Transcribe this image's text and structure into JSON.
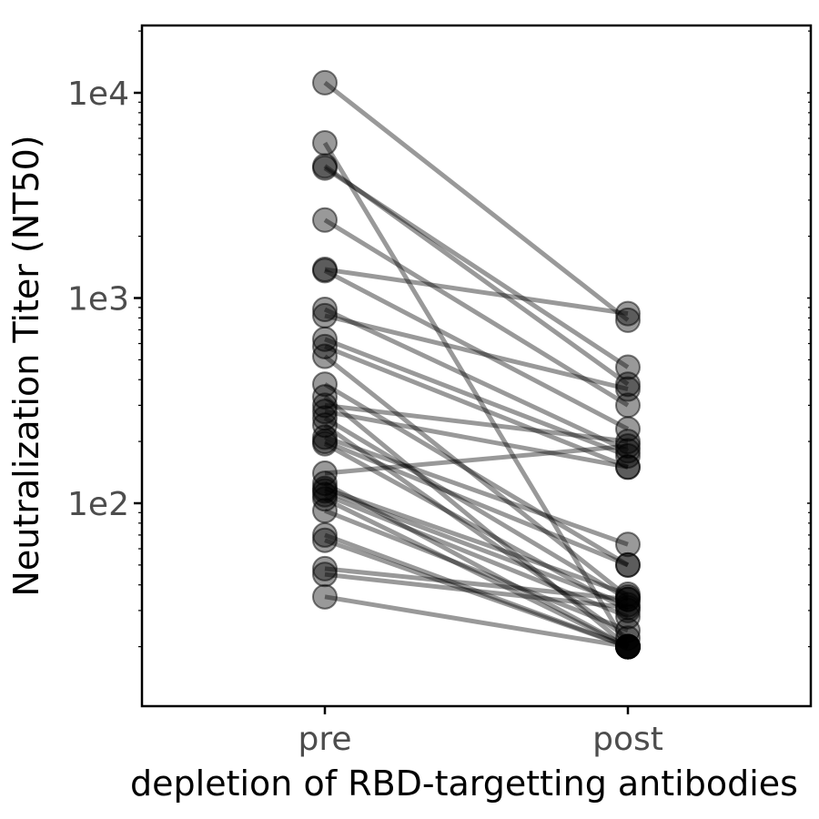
{
  "chart_data": {
    "type": "line",
    "title": "",
    "xlabel": "depletion of RBD-targetting antibodies",
    "ylabel": "Neutralization Titer (NT50)",
    "categories": [
      "pre",
      "post"
    ],
    "y_scale": "log",
    "ylim": [
      10,
      21000
    ],
    "y_ticks": [
      {
        "value": 100,
        "label": "1e2"
      },
      {
        "value": 1000,
        "label": "1e3"
      },
      {
        "value": 10000,
        "label": "1e4"
      }
    ],
    "grid": false,
    "legend": "none",
    "marker_color": "#000000",
    "marker_opacity": 0.4,
    "pairs": [
      {
        "pre": 11200,
        "post": 780
      },
      {
        "pre": 5700,
        "post": 20
      },
      {
        "pre": 4400,
        "post": 380
      },
      {
        "pre": 4300,
        "post": 460
      },
      {
        "pre": 2400,
        "post": 300
      },
      {
        "pre": 1380,
        "post": 840
      },
      {
        "pre": 1360,
        "post": 230
      },
      {
        "pre": 880,
        "post": 180
      },
      {
        "pre": 820,
        "post": 360
      },
      {
        "pre": 630,
        "post": 170
      },
      {
        "pre": 580,
        "post": 150
      },
      {
        "pre": 520,
        "post": 35
      },
      {
        "pre": 380,
        "post": 50
      },
      {
        "pre": 330,
        "post": 20
      },
      {
        "pre": 300,
        "post": 200
      },
      {
        "pre": 280,
        "post": 150
      },
      {
        "pre": 260,
        "post": 34
      },
      {
        "pre": 240,
        "post": 22
      },
      {
        "pre": 210,
        "post": 63
      },
      {
        "pre": 200,
        "post": 50
      },
      {
        "pre": 195,
        "post": 30
      },
      {
        "pre": 140,
        "post": 190
      },
      {
        "pre": 125,
        "post": 20
      },
      {
        "pre": 118,
        "post": 36
      },
      {
        "pre": 115,
        "post": 32
      },
      {
        "pre": 110,
        "post": 28
      },
      {
        "pre": 105,
        "post": 20
      },
      {
        "pre": 92,
        "post": 24
      },
      {
        "pre": 70,
        "post": 20
      },
      {
        "pre": 66,
        "post": 20
      },
      {
        "pre": 48,
        "post": 34
      },
      {
        "pre": 45,
        "post": 31
      },
      {
        "pre": 35,
        "post": 20
      }
    ]
  }
}
